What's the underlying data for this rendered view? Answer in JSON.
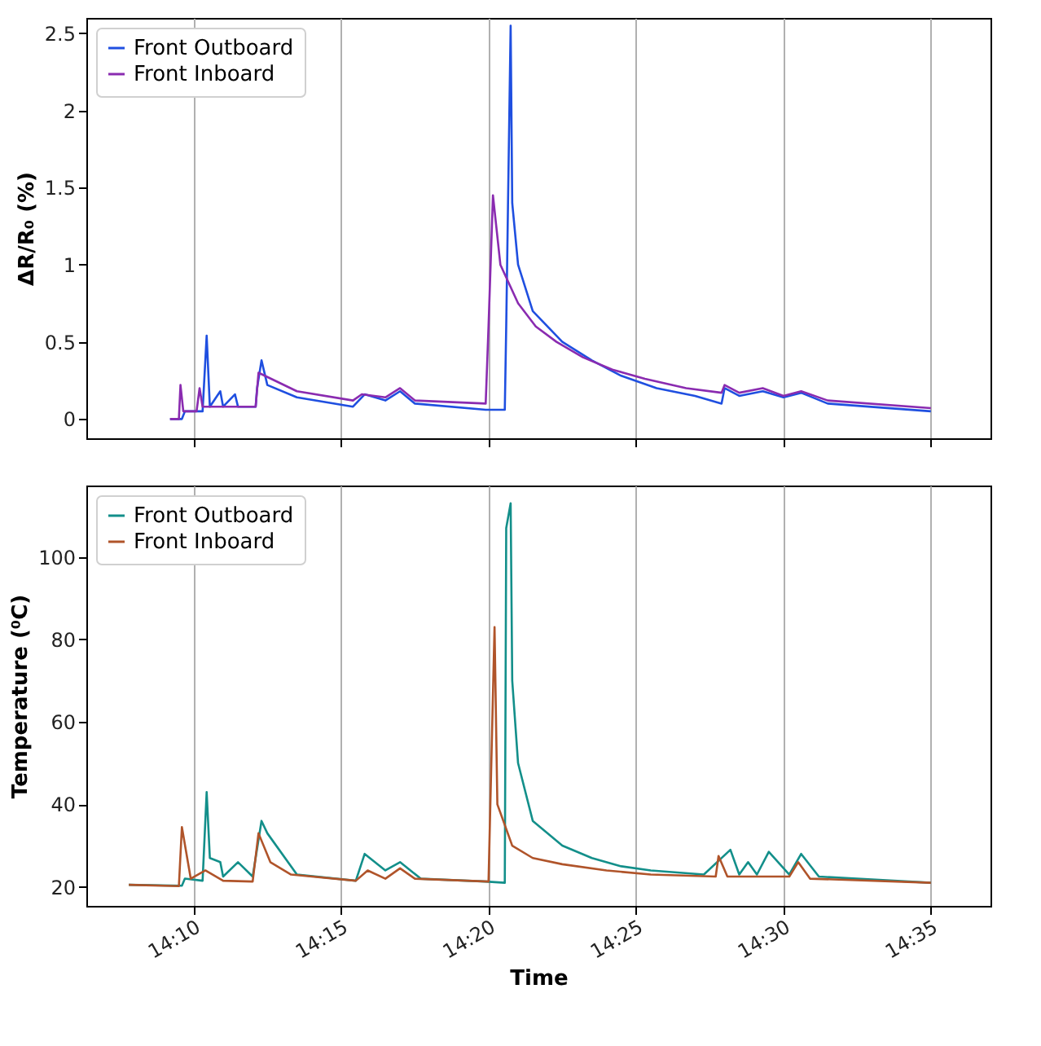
{
  "chart_data": [
    {
      "type": "line",
      "ylabel": "ΔR/R₀ (%)",
      "xlim": [
        14.106,
        14.617
      ],
      "ylim": [
        -0.125,
        2.6
      ],
      "xticks": [
        {
          "value": 14.1667,
          "label": null
        },
        {
          "value": 14.25,
          "label": null
        },
        {
          "value": 14.3333,
          "label": null
        },
        {
          "value": 14.4167,
          "label": null
        },
        {
          "value": 14.5,
          "label": null
        },
        {
          "value": 14.5833,
          "label": null
        }
      ],
      "yticks": [
        0,
        0.5,
        1,
        1.5,
        2,
        2.5
      ],
      "grid": "x",
      "legend": "top left",
      "tick_labels": "y",
      "series": [
        {
          "name": "Front Outboard",
          "color": "#1f4fe0",
          "x": [
            14.1533,
            14.16,
            14.1617,
            14.1717,
            14.174,
            14.1758,
            14.1817,
            14.1833,
            14.19,
            14.1917,
            14.2017,
            14.2025,
            14.205,
            14.2083,
            14.225,
            14.2567,
            14.2633,
            14.275,
            14.2833,
            14.2917,
            14.3317,
            14.3425,
            14.3433,
            14.3458,
            14.3467,
            14.35,
            14.3583,
            14.375,
            14.3917,
            14.4083,
            14.4283,
            14.45,
            14.465,
            14.4667,
            14.475,
            14.4883,
            14.5,
            14.51,
            14.525,
            14.5833
          ],
          "values": [
            0,
            0,
            0.05,
            0.05,
            0.54,
            0.08,
            0.18,
            0.08,
            0.16,
            0.08,
            0.08,
            0.2,
            0.38,
            0.22,
            0.14,
            0.08,
            0.16,
            0.12,
            0.18,
            0.1,
            0.06,
            0.06,
            0.6,
            2.55,
            1.4,
            1.0,
            0.7,
            0.5,
            0.38,
            0.28,
            0.2,
            0.15,
            0.1,
            0.2,
            0.15,
            0.18,
            0.14,
            0.17,
            0.1,
            0.05
          ]
        },
        {
          "name": "Front Inboard",
          "color": "#8a2bb0",
          "x": [
            14.1533,
            14.1583,
            14.1592,
            14.1608,
            14.1683,
            14.17,
            14.1717,
            14.2017,
            14.2033,
            14.225,
            14.2567,
            14.2617,
            14.275,
            14.2833,
            14.2917,
            14.3317,
            14.3333,
            14.3358,
            14.34,
            14.35,
            14.36,
            14.3717,
            14.3867,
            14.4033,
            14.4217,
            14.445,
            14.465,
            14.4667,
            14.475,
            14.4883,
            14.5,
            14.51,
            14.525,
            14.5833
          ],
          "values": [
            0,
            0,
            0.22,
            0.05,
            0.05,
            0.2,
            0.08,
            0.08,
            0.3,
            0.18,
            0.12,
            0.16,
            0.14,
            0.2,
            0.12,
            0.1,
            0.6,
            1.45,
            1.0,
            0.75,
            0.6,
            0.5,
            0.4,
            0.32,
            0.26,
            0.2,
            0.17,
            0.22,
            0.17,
            0.2,
            0.15,
            0.18,
            0.12,
            0.07
          ]
        }
      ]
    },
    {
      "type": "line",
      "xlabel": "Time",
      "ylabel": "Temperature (⁰C)",
      "xlim": [
        14.106,
        14.617
      ],
      "ylim": [
        15.4,
        117.3
      ],
      "xticks": [
        {
          "value": 14.1667,
          "label": "14:10"
        },
        {
          "value": 14.25,
          "label": "14:15"
        },
        {
          "value": 14.3333,
          "label": "14:20"
        },
        {
          "value": 14.4167,
          "label": "14:25"
        },
        {
          "value": 14.5,
          "label": "14:30"
        },
        {
          "value": 14.5833,
          "label": "14:35"
        }
      ],
      "yticks": [
        20,
        40,
        60,
        80,
        100
      ],
      "grid": "x",
      "legend": "top left",
      "series": [
        {
          "name": "Front Outboard",
          "color": "#138f8a",
          "x": [
            14.13,
            14.16,
            14.1617,
            14.1717,
            14.174,
            14.1758,
            14.1817,
            14.1833,
            14.1917,
            14.2,
            14.205,
            14.2083,
            14.225,
            14.2583,
            14.2633,
            14.275,
            14.2833,
            14.295,
            14.3317,
            14.3425,
            14.3433,
            14.3458,
            14.3467,
            14.35,
            14.3583,
            14.375,
            14.3917,
            14.4083,
            14.425,
            14.455,
            14.47,
            14.475,
            14.48,
            14.485,
            14.4917,
            14.5033,
            14.51,
            14.52,
            14.5833
          ],
          "values": [
            20.5,
            20.3,
            22,
            21.5,
            43,
            27,
            26,
            22.5,
            26,
            22.5,
            36,
            33,
            23,
            21.5,
            28,
            24,
            26,
            22,
            21.3,
            21,
            107,
            113,
            70,
            50,
            36,
            30,
            27,
            25,
            24,
            23,
            29,
            23,
            26,
            23,
            28.5,
            23,
            28,
            22.5,
            21
          ]
        },
        {
          "name": "Front Inboard",
          "color": "#b0542a",
          "x": [
            14.13,
            14.1583,
            14.16,
            14.165,
            14.1733,
            14.1833,
            14.2,
            14.2033,
            14.21,
            14.2217,
            14.2583,
            14.265,
            14.275,
            14.2833,
            14.2917,
            14.3333,
            14.3367,
            14.3383,
            14.3467,
            14.3583,
            14.375,
            14.4,
            14.425,
            14.4617,
            14.4633,
            14.4683,
            14.5033,
            14.5083,
            14.515,
            14.5833
          ],
          "values": [
            20.5,
            20.2,
            34.5,
            22,
            24,
            21.5,
            21.3,
            33,
            26,
            23,
            21.5,
            24,
            22,
            24.5,
            22,
            21.3,
            83,
            40,
            30,
            27,
            25.5,
            24,
            23,
            22.5,
            27.5,
            22.5,
            22.5,
            26,
            22,
            21
          ]
        }
      ]
    }
  ]
}
